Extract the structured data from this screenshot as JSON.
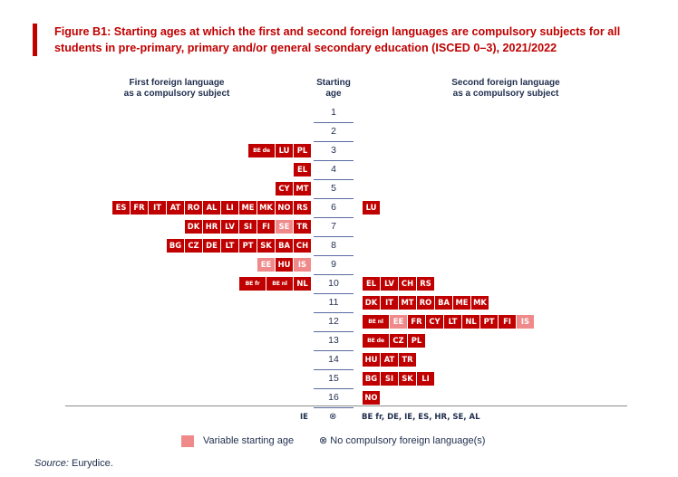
{
  "title": "Figure B1: Starting ages at which the first and second foreign languages are compulsory subjects for all students in pre-primary, primary and/or general secondary education (ISCED 0–3), 2021/2022",
  "headers": {
    "left": "First foreign language\nas a compulsory subject",
    "center": "Starting\nage",
    "right": "Second foreign language\nas a compulsory subject"
  },
  "colors": {
    "solid": "#c00000",
    "variable": "#f08a8a",
    "title": "#c00000",
    "text": "#1f2d4d"
  },
  "chart_data": {
    "type": "table",
    "ages": [
      "1",
      "2",
      "3",
      "4",
      "5",
      "6",
      "7",
      "8",
      "9",
      "10",
      "11",
      "12",
      "13",
      "14",
      "15",
      "16"
    ],
    "first_language": [
      [],
      [],
      [
        {
          "c": "BE de"
        },
        {
          "c": "LU"
        },
        {
          "c": "PL"
        }
      ],
      [
        {
          "c": "EL"
        }
      ],
      [
        {
          "c": "CY"
        },
        {
          "c": "MT"
        }
      ],
      [
        {
          "c": "ES"
        },
        {
          "c": "FR"
        },
        {
          "c": "IT"
        },
        {
          "c": "AT"
        },
        {
          "c": "RO"
        },
        {
          "c": "AL"
        },
        {
          "c": "LI"
        },
        {
          "c": "ME"
        },
        {
          "c": "MK"
        },
        {
          "c": "NO"
        },
        {
          "c": "RS"
        }
      ],
      [
        {
          "c": "DK"
        },
        {
          "c": "HR"
        },
        {
          "c": "LV"
        },
        {
          "c": "SI"
        },
        {
          "c": "FI"
        },
        {
          "c": "SE",
          "v": true
        },
        {
          "c": "TR"
        }
      ],
      [
        {
          "c": "BG"
        },
        {
          "c": "CZ"
        },
        {
          "c": "DE"
        },
        {
          "c": "LT"
        },
        {
          "c": "PT"
        },
        {
          "c": "SK"
        },
        {
          "c": "BA"
        },
        {
          "c": "CH"
        }
      ],
      [
        {
          "c": "EE",
          "v": true
        },
        {
          "c": "HU"
        },
        {
          "c": "IS",
          "v": true
        }
      ],
      [
        {
          "c": "BE fr"
        },
        {
          "c": "BE nl"
        },
        {
          "c": "NL"
        }
      ],
      [],
      [],
      [],
      [],
      [],
      []
    ],
    "second_language": [
      [],
      [],
      [],
      [],
      [],
      [
        {
          "c": "LU"
        }
      ],
      [],
      [],
      [],
      [
        {
          "c": "EL"
        },
        {
          "c": "LV"
        },
        {
          "c": "CH"
        },
        {
          "c": "RS"
        }
      ],
      [
        {
          "c": "DK"
        },
        {
          "c": "IT"
        },
        {
          "c": "MT"
        },
        {
          "c": "RO"
        },
        {
          "c": "BA"
        },
        {
          "c": "ME"
        },
        {
          "c": "MK"
        }
      ],
      [
        {
          "c": "BE nl"
        },
        {
          "c": "EE",
          "v": true
        },
        {
          "c": "FR"
        },
        {
          "c": "CY"
        },
        {
          "c": "LT"
        },
        {
          "c": "NL"
        },
        {
          "c": "PT"
        },
        {
          "c": "FI"
        },
        {
          "c": "IS",
          "v": true
        }
      ],
      [
        {
          "c": "BE de"
        },
        {
          "c": "CZ"
        },
        {
          "c": "PL"
        }
      ],
      [
        {
          "c": "HU"
        },
        {
          "c": "AT"
        },
        {
          "c": "TR"
        }
      ],
      [
        {
          "c": "BG"
        },
        {
          "c": "SI"
        },
        {
          "c": "SK"
        },
        {
          "c": "LI"
        }
      ],
      [
        {
          "c": "NO"
        }
      ]
    ],
    "no_compulsory": {
      "first": "IE",
      "symbol": "⊗",
      "second": "BE fr, DE, IE, ES, HR, SE, AL"
    }
  },
  "legend": {
    "variable_label": "Variable starting age",
    "none_label": "⊗  No compulsory foreign language(s)"
  },
  "source": {
    "label": "Source:",
    "text": " Eurydice."
  }
}
